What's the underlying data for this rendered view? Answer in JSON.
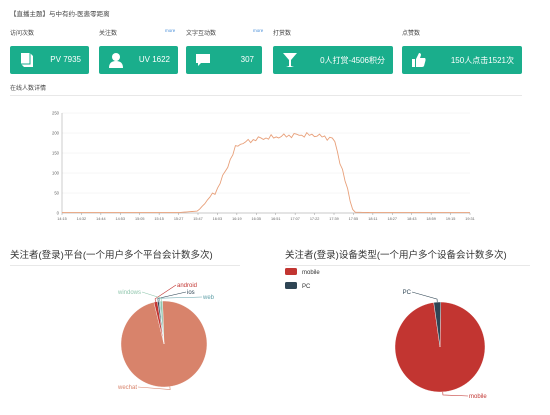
{
  "header": {
    "title": "【直播主题】与中有约-医患零距离"
  },
  "stats": [
    {
      "label": "访问次数",
      "value": "PV 7935",
      "icon": "book-icon"
    },
    {
      "label": "关注数",
      "value": "UV 1622",
      "icon": "user-icon",
      "more": "more"
    },
    {
      "label": "文字互动数",
      "value": "307",
      "icon": "chat-icon",
      "more": "more"
    },
    {
      "label": "打赏数",
      "value": "0人打赏-4506积分",
      "icon": "cocktail-icon"
    },
    {
      "label": "点赞数",
      "value": "150人点击1521次",
      "icon": "thumbs-up-icon"
    }
  ],
  "online_section": {
    "title": "在线人数详情"
  },
  "colors": {
    "card": "#1aae8c",
    "line": "#e8a07a",
    "wechat": "#d8836b",
    "mobile": "#c23531",
    "pc": "#2f4554"
  },
  "chart_data": [
    {
      "type": "line",
      "title": "在线人数详情",
      "ylim": [
        0,
        250
      ],
      "yticks": [
        0,
        50,
        100,
        150,
        200,
        250
      ],
      "x": [
        "14:15",
        "14:32",
        "14:44",
        "14:53",
        "15:05",
        "15:15",
        "15:27",
        "15:47",
        "16:03",
        "16:19",
        "16:35",
        "16:51",
        "17:07",
        "17:22",
        "17:39",
        "17:55",
        "18:11",
        "18:27",
        "18:43",
        "18:59",
        "19:15",
        "19:31"
      ],
      "values": [
        1,
        1,
        1,
        1,
        1,
        1,
        1,
        5,
        60,
        170,
        185,
        190,
        195,
        195,
        185,
        2,
        1,
        1,
        1,
        1,
        1,
        1
      ],
      "grid": true
    },
    {
      "type": "pie",
      "title": "关注者(登录)平台(一个用户多个平台会计数多次)",
      "slices": [
        {
          "name": "wechat",
          "value": 96.8,
          "color": "#d8836b"
        },
        {
          "name": "android",
          "value": 1.3,
          "color": "#c23531"
        },
        {
          "name": "ios",
          "value": 0.6,
          "color": "#2f4554"
        },
        {
          "name": "web",
          "value": 0.4,
          "color": "#61a0a8"
        },
        {
          "name": "windows",
          "value": 0.9,
          "color": "#91c7ae"
        }
      ]
    },
    {
      "type": "pie",
      "title": "关注者(登录)设备类型(一个用户多个设备会计数多次)",
      "legend": [
        "mobile",
        "PC"
      ],
      "legend_position": "top-left",
      "slices": [
        {
          "name": "mobile",
          "value": 97.5,
          "color": "#c23531"
        },
        {
          "name": "PC",
          "value": 2.5,
          "color": "#2f4554"
        }
      ]
    }
  ]
}
